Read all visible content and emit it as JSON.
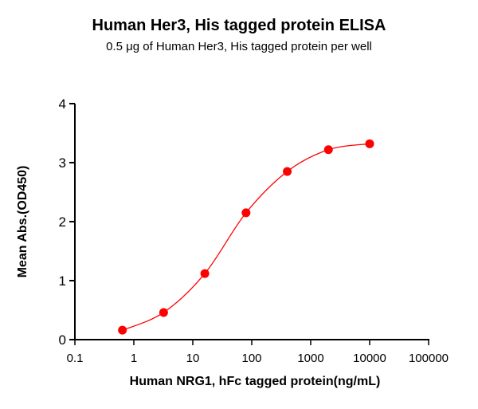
{
  "chart_data": {
    "type": "scatter",
    "title": "Human Her3, His tagged protein ELISA",
    "subtitle": "0.5 μg of Human Her3, His tagged protein per well",
    "xlabel": "Human NRG1, hFc tagged protein(ng/mL)",
    "ylabel": "Mean Abs.(OD450)",
    "xscale": "log",
    "xlim": [
      0.1,
      100000
    ],
    "ylim": [
      0,
      4
    ],
    "x_ticks": [
      "0.1",
      "1",
      "10",
      "100",
      "1000",
      "10000",
      "100000"
    ],
    "y_ticks": [
      "0",
      "1",
      "2",
      "3",
      "4"
    ],
    "grid": false,
    "legend": null,
    "series": [
      {
        "name": "Human NRG1, hFc tagged protein",
        "color": "#FF0000",
        "marker": "circle",
        "fit": "sigmoidal (4PL) curve",
        "x": [
          0.64,
          3.2,
          16,
          80,
          400,
          2000,
          10000
        ],
        "y": [
          0.16,
          0.46,
          1.12,
          2.15,
          2.85,
          3.22,
          3.32
        ]
      }
    ]
  }
}
